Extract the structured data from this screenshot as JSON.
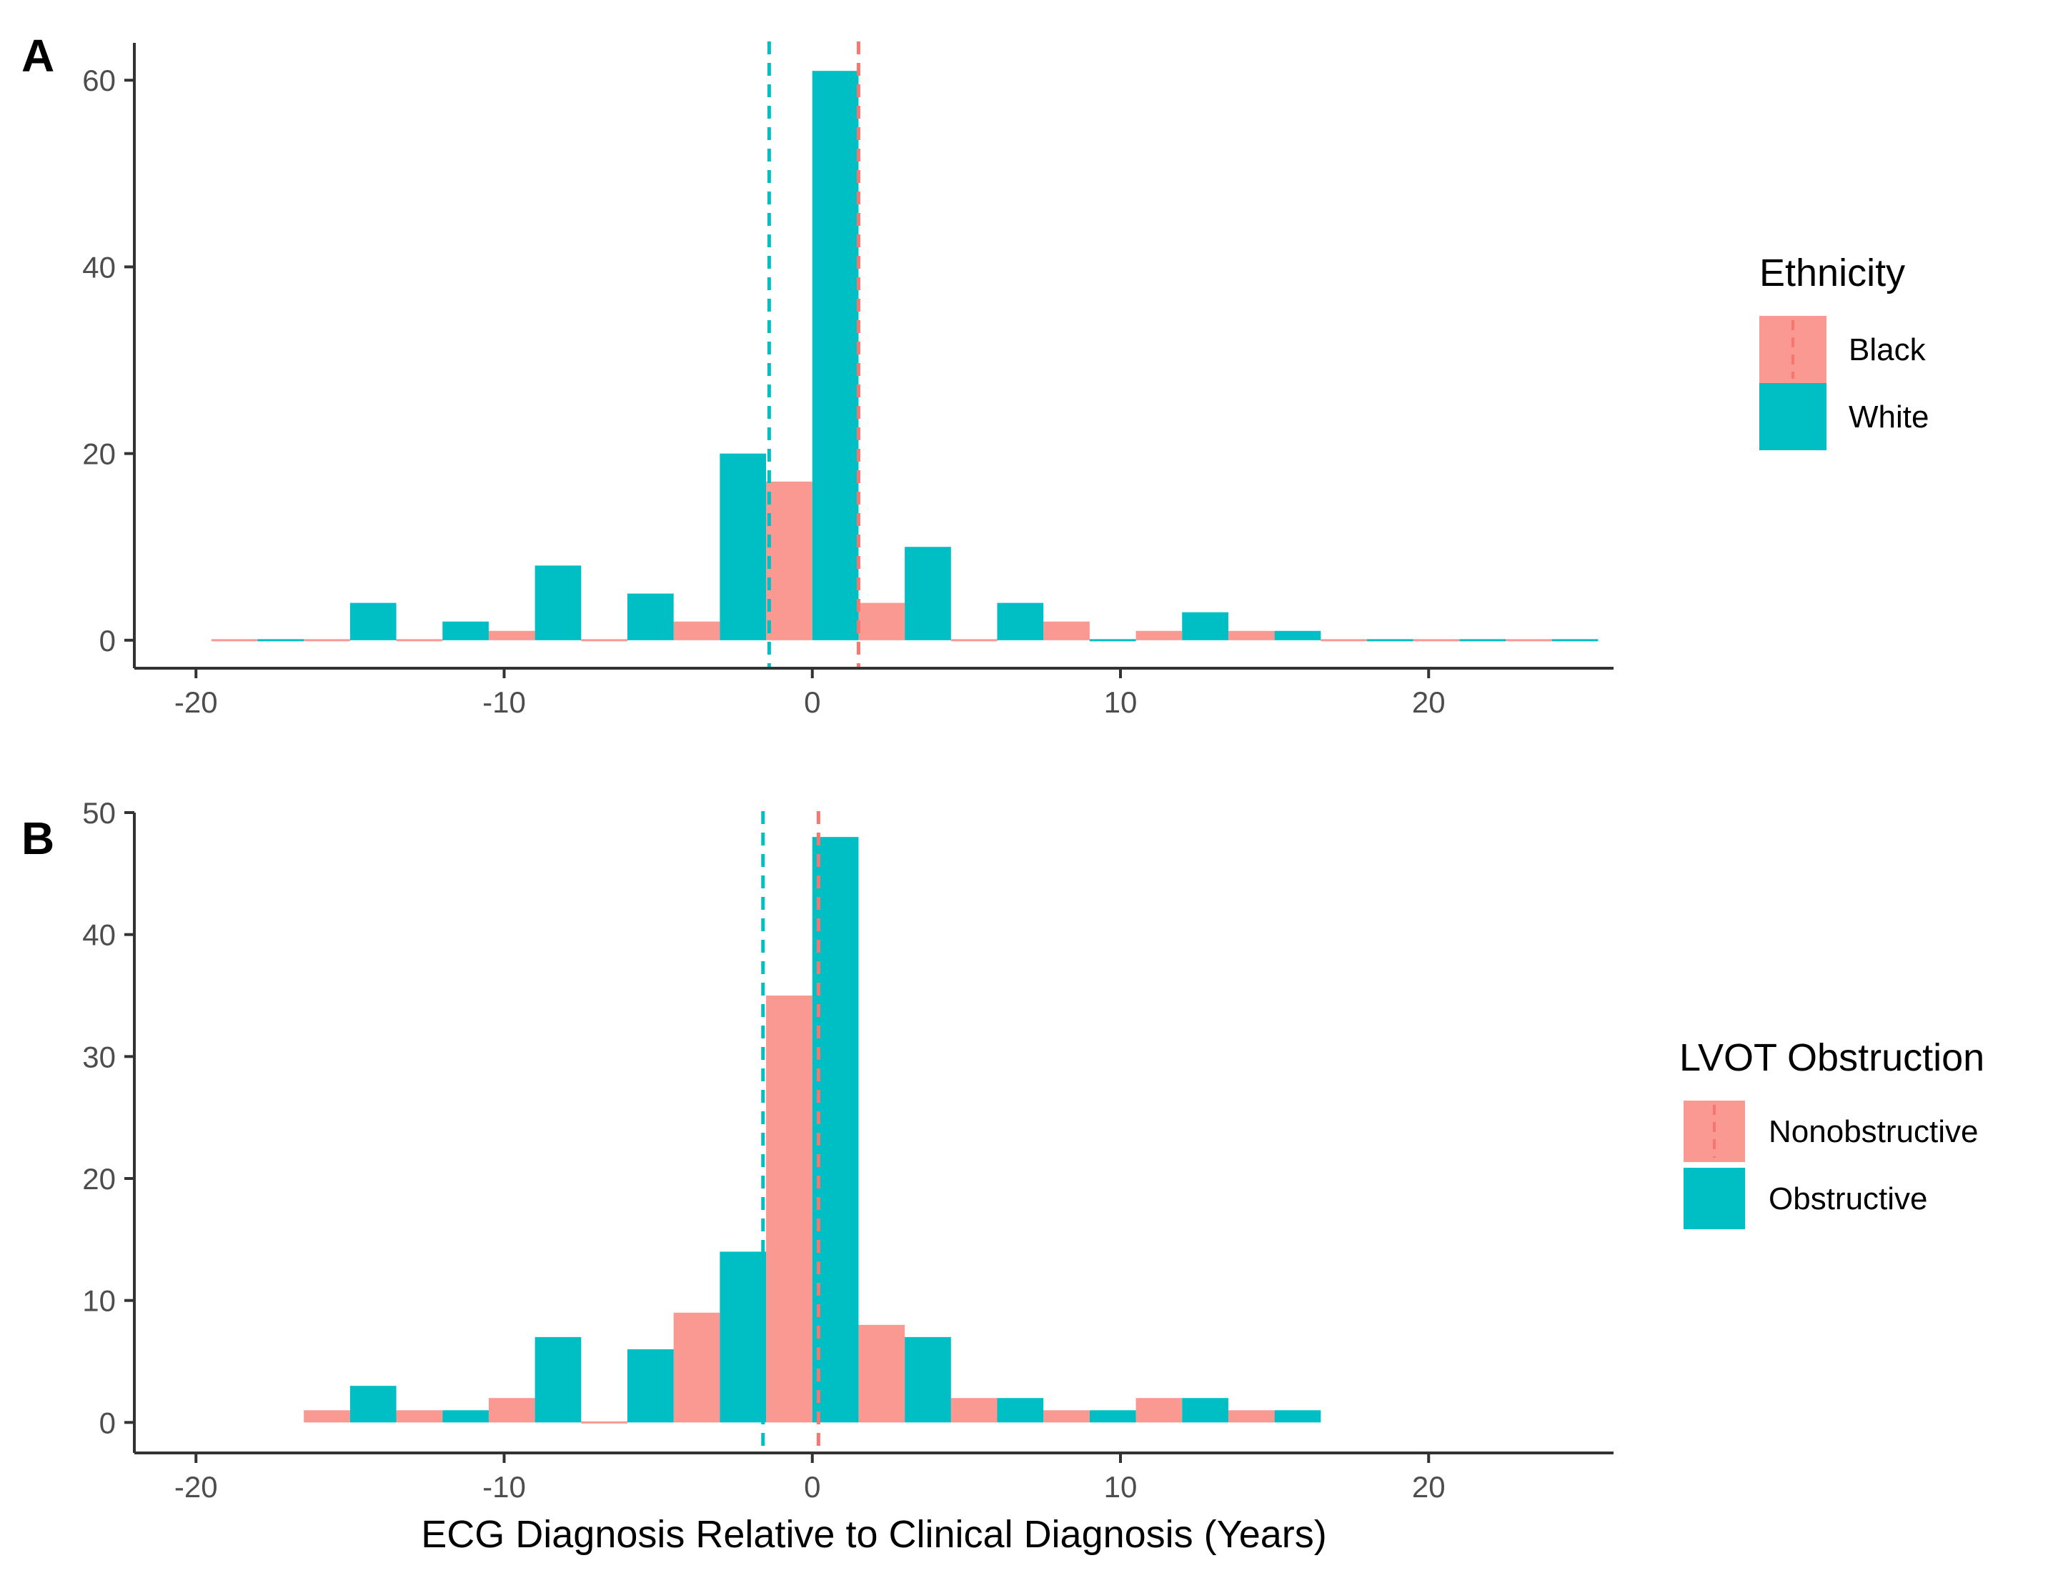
{
  "colors": {
    "series_a": "#F8766D",
    "series_b": "#00BFC4",
    "axis": "#333333",
    "text": "#4d4d4d"
  },
  "x_title": "ECG Diagnosis Relative to Clinical Diagnosis (Years)",
  "chart_data": [
    {
      "type": "bar",
      "panel_label": "A",
      "xlabel": "",
      "ylabel": "",
      "xlim": [
        -22,
        26
      ],
      "ylim": [
        -3,
        64
      ],
      "x_ticks": [
        "-20",
        "-10",
        "0",
        "10",
        "20"
      ],
      "x_tick_values": [
        -20,
        -10,
        0,
        10,
        20
      ],
      "y_ticks": [
        "0",
        "20",
        "40",
        "60"
      ],
      "y_tick_values": [
        0,
        20,
        40,
        60
      ],
      "bin_width": 3,
      "bin_centers": [
        -18,
        -15,
        -12,
        -9,
        -6,
        -3,
        0,
        3,
        6,
        9,
        12,
        15,
        18,
        21,
        24
      ],
      "legend": {
        "title": "Ethnicity",
        "position": "right"
      },
      "series": [
        {
          "name": "Black",
          "color": "#F8766D",
          "mean_line": 1.5,
          "values": [
            0,
            0,
            0,
            1,
            0,
            2,
            17,
            4,
            0,
            2,
            1,
            1,
            0,
            0,
            0
          ]
        },
        {
          "name": "White",
          "color": "#00BFC4",
          "mean_line": -1.4,
          "values": [
            0,
            4,
            2,
            8,
            5,
            20,
            61,
            10,
            4,
            0,
            3,
            1,
            0,
            0,
            0
          ]
        }
      ]
    },
    {
      "type": "bar",
      "panel_label": "B",
      "xlabel": "ECG Diagnosis Relative to Clinical Diagnosis (Years)",
      "ylabel": "",
      "xlim": [
        -22,
        26
      ],
      "ylim": [
        -2.5,
        50
      ],
      "x_ticks": [
        "-20",
        "-10",
        "0",
        "10",
        "20"
      ],
      "x_tick_values": [
        -20,
        -10,
        0,
        10,
        20
      ],
      "y_ticks": [
        "0",
        "10",
        "20",
        "30",
        "40",
        "50"
      ],
      "y_tick_values": [
        0,
        10,
        20,
        30,
        40,
        50
      ],
      "bin_width": 3,
      "bin_centers": [
        -15,
        -12,
        -9,
        -6,
        -3,
        0,
        3,
        6,
        9,
        12,
        15
      ],
      "legend": {
        "title": "LVOT Obstruction",
        "position": "right"
      },
      "series": [
        {
          "name": "Nonobstructive",
          "color": "#F8766D",
          "mean_line": 0.2,
          "values": [
            1,
            1,
            2,
            0,
            9,
            35,
            8,
            2,
            1,
            2,
            1
          ]
        },
        {
          "name": "Obstructive",
          "color": "#00BFC4",
          "mean_line": -1.6,
          "values": [
            3,
            1,
            7,
            6,
            14,
            48,
            7,
            2,
            1,
            2,
            1
          ]
        }
      ]
    }
  ]
}
